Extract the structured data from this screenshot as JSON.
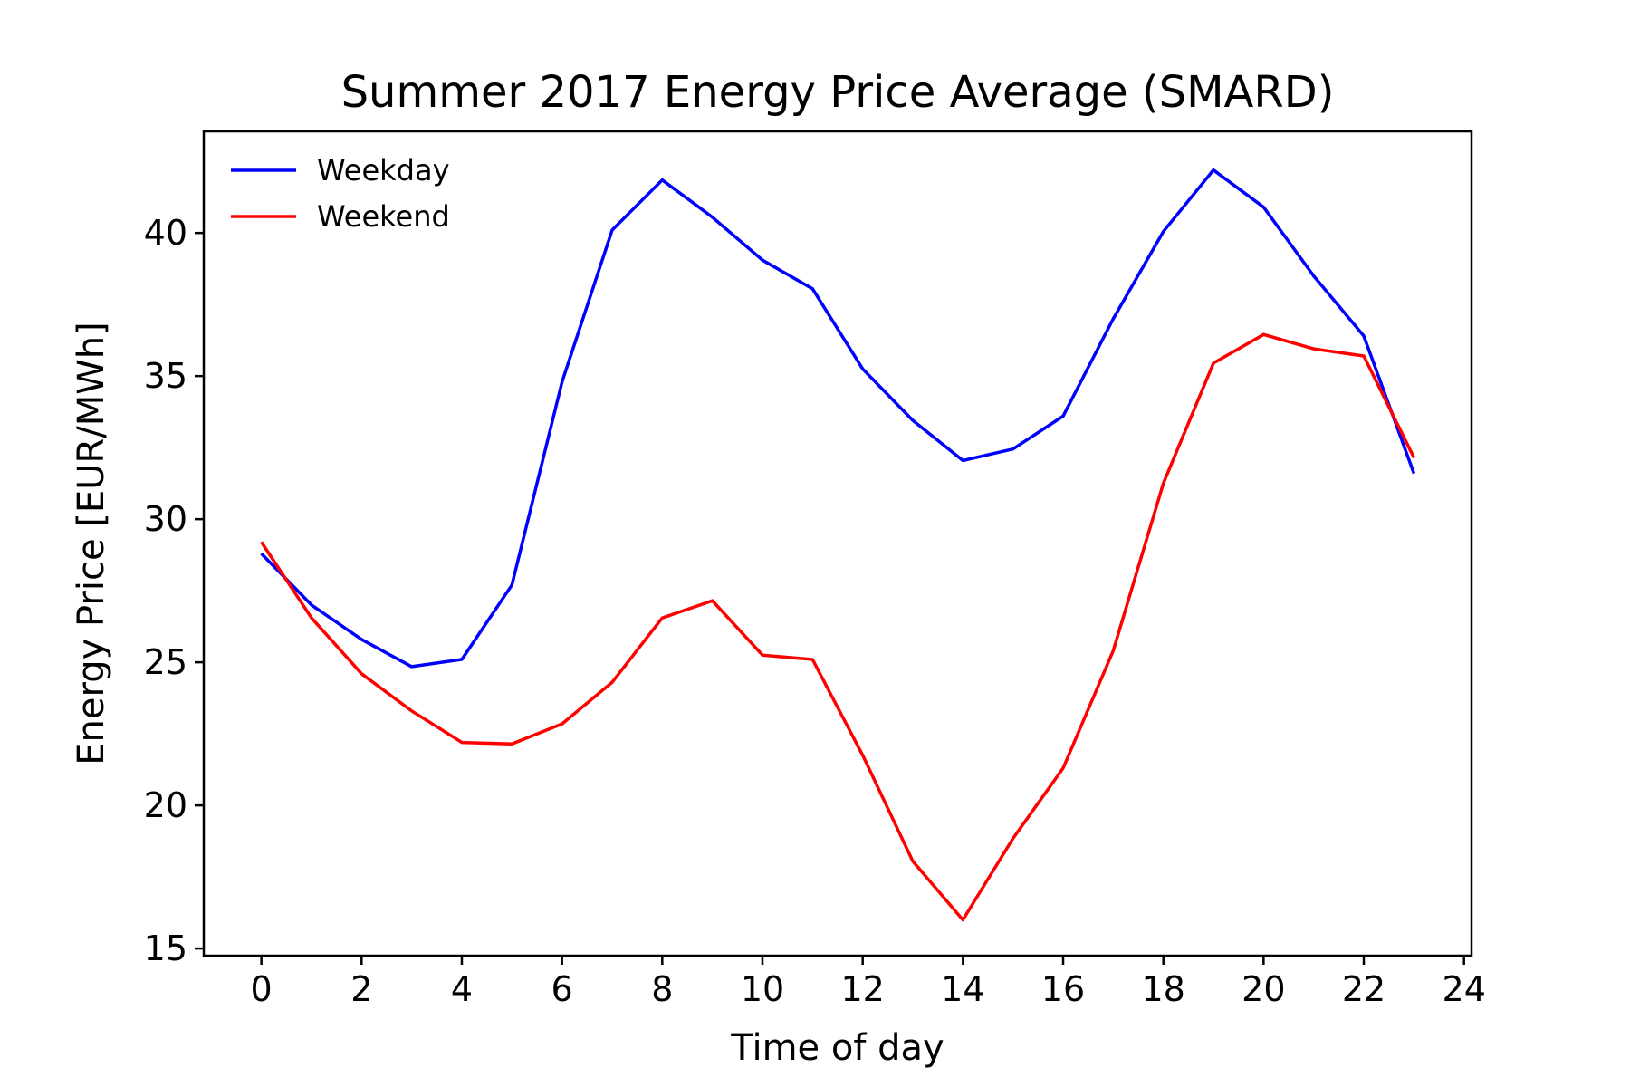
{
  "chart_data": {
    "type": "line",
    "title": "Summer 2017 Energy Price Average (SMARD)",
    "xlabel": "Time of day",
    "ylabel": "Energy Price [EUR/MWh]",
    "xlim": [
      -1.15,
      24.15
    ],
    "ylim": [
      14.75,
      43.55
    ],
    "x_ticks": [
      0,
      2,
      4,
      6,
      8,
      10,
      12,
      14,
      16,
      18,
      20,
      22,
      24
    ],
    "y_ticks": [
      15,
      20,
      25,
      30,
      35,
      40
    ],
    "grid": false,
    "legend_position": "top-left",
    "x": [
      0,
      1,
      2,
      3,
      4,
      5,
      6,
      7,
      8,
      9,
      10,
      11,
      12,
      13,
      14,
      15,
      16,
      17,
      18,
      19,
      20,
      21,
      22,
      23
    ],
    "series": [
      {
        "name": "Weekday",
        "color": "#0000ff",
        "values": [
          28.8,
          27.0,
          25.8,
          24.85,
          25.1,
          27.7,
          34.8,
          40.1,
          41.85,
          40.55,
          39.05,
          38.05,
          35.25,
          33.45,
          32.05,
          32.45,
          33.6,
          37.0,
          40.05,
          42.2,
          40.9,
          38.5,
          36.4,
          31.6
        ]
      },
      {
        "name": "Weekend",
        "color": "#ff0000",
        "values": [
          29.2,
          26.55,
          24.6,
          23.3,
          22.2,
          22.15,
          22.85,
          24.3,
          26.55,
          27.15,
          25.25,
          25.1,
          21.75,
          18.05,
          16.0,
          18.85,
          21.3,
          25.4,
          31.25,
          35.45,
          36.45,
          35.95,
          35.7,
          32.15
        ]
      }
    ]
  }
}
